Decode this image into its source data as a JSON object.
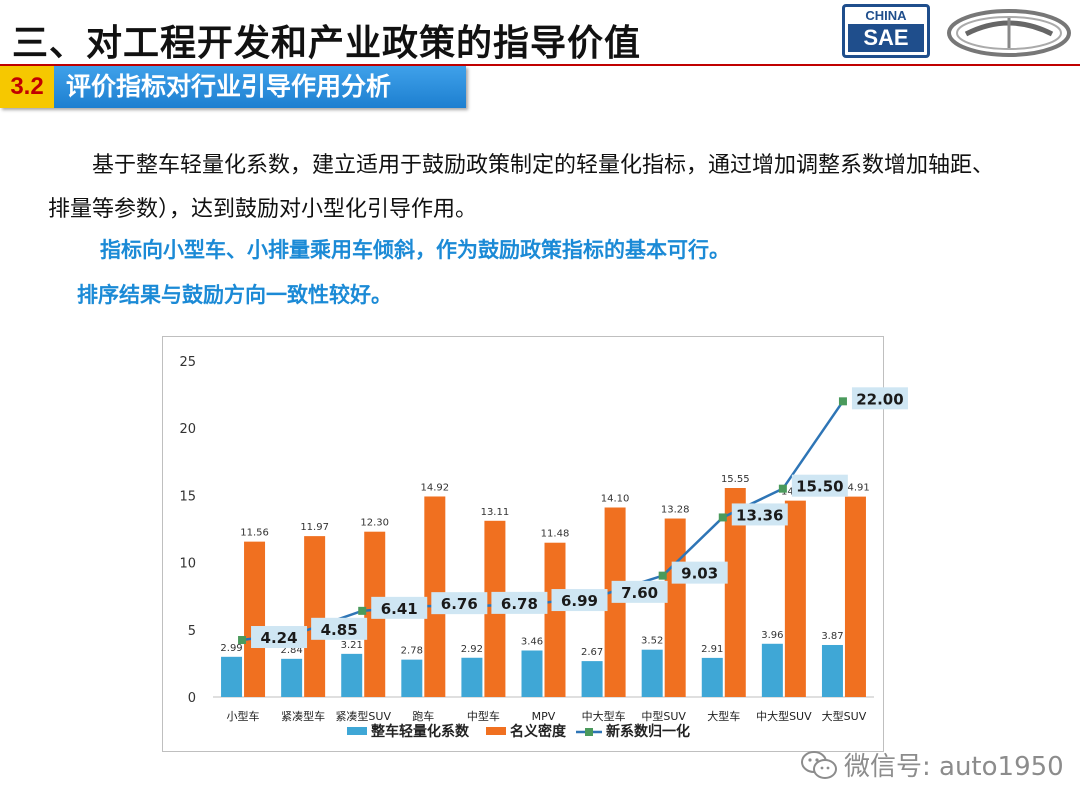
{
  "header": {
    "title": "三、对工程开发和产业政策的指导价值",
    "logo_top": "CHINA",
    "logo_bottom": "SAE"
  },
  "section": {
    "number": "3.2",
    "title": "评价指标对行业引导作用分析"
  },
  "body": {
    "paragraph": "基于整车轻量化系数，建立适用于鼓励政策制定的轻量化指标，通过增加调整系数增加轴距、排量等参数），达到鼓励对小型化引导作用。",
    "highlight1": "指标向小型车、小排量乘用车倾斜，作为鼓励政策指标的基本可行。",
    "highlight2": "排序结果与鼓励方向一致性较好。"
  },
  "colors": {
    "accent_blue": "#1b8ad6",
    "header_red": "#c00000",
    "section_yellow": "#f6c800",
    "bar_blue": "#3fa7d6",
    "bar_orange": "#f07020",
    "line_blue": "#2e75b6",
    "marker_green": "#4a9a5c",
    "label_box": "#cfe6f3"
  },
  "chart_data": {
    "type": "bar",
    "categories": [
      "小型车",
      "紧凑型车",
      "紧凑型SUV",
      "跑车",
      "中型车",
      "MPV",
      "中大型车",
      "中型SUV",
      "大型车",
      "中大型SUV",
      "大型SUV"
    ],
    "series": [
      {
        "name": "整车轻量化系数",
        "type": "bar",
        "values": [
          2.99,
          2.84,
          3.21,
          2.78,
          2.92,
          3.46,
          2.67,
          3.52,
          2.91,
          3.96,
          3.87
        ]
      },
      {
        "name": "名义密度",
        "type": "bar",
        "values": [
          11.56,
          11.97,
          12.3,
          14.92,
          13.11,
          11.48,
          14.1,
          13.28,
          15.55,
          14.61,
          14.91
        ]
      },
      {
        "name": "新系数归一化",
        "type": "line",
        "values": [
          4.24,
          4.85,
          6.41,
          6.76,
          6.78,
          6.99,
          7.6,
          9.03,
          13.36,
          15.5,
          22.0
        ]
      }
    ],
    "ylim": [
      0,
      25
    ],
    "yticks": [
      0,
      5,
      10,
      15,
      20,
      25
    ],
    "legend": "bottom",
    "grid": false
  },
  "watermark": {
    "text": "微信号: auto1950"
  }
}
